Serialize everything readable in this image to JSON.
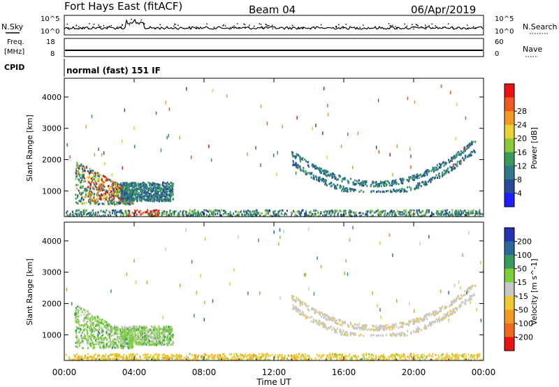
{
  "chart_data": {
    "type": "heatmap",
    "title": "Fort Hays East (fitACF)",
    "beam": "Beam 04",
    "date": "06/Apr/2019",
    "mode": "normal (fast) 151 IF",
    "xlabel": "Time UT",
    "x_ticks": [
      "00:00",
      "04:00",
      "08:00",
      "12:00",
      "16:00",
      "20:00",
      "00:00"
    ],
    "xlim_hours": [
      0,
      24
    ],
    "top_panels": {
      "nsky": {
        "left_label": "N.Sky",
        "right_label": "N.Search",
        "left_ticks": [
          "10^5",
          "10^0"
        ],
        "right_ticks": [
          "10^5",
          "10^0"
        ]
      },
      "freq": {
        "left_label_1": "Freq.",
        "left_label_2": "[MHz]",
        "right_label": "Nave",
        "left_ticks": [
          "18",
          "8"
        ],
        "right_ticks": [
          "60",
          "0"
        ]
      },
      "cpid_label": "CPID"
    },
    "panels": [
      {
        "name": "Power",
        "ylabel": "Slant Range [km]",
        "y_ticks": [
          "1000",
          "2000",
          "3000",
          "4000"
        ],
        "ylim_km": [
          180,
          4600
        ],
        "colorbar_label": "Power [dB]",
        "colorbar_ticks": [
          "4",
          "8",
          "12",
          "16",
          "20",
          "24",
          "28"
        ],
        "colorbar_colors": [
          "#1e1eff",
          "#2a4a9a",
          "#2f7a8a",
          "#3a9a5a",
          "#8ac83c",
          "#e8d234",
          "#f09a28",
          "#f05a1e",
          "#e81414"
        ]
      },
      {
        "name": "Velocity",
        "ylabel": "Slant Range [km]",
        "y_ticks": [
          "1000",
          "2000",
          "3000",
          "4000"
        ],
        "ylim_km": [
          180,
          4600
        ],
        "colorbar_label": "Velocity [m s^-1]",
        "colorbar_ticks": [
          "200",
          "100",
          "50",
          "15",
          "-15",
          "-50",
          "-100",
          "-200"
        ],
        "colorbar_colors": [
          "#2232b0",
          "#2a6a9a",
          "#3a9a5a",
          "#7ed03a",
          "#c8c8c8",
          "#f0c834",
          "#f09a28",
          "#f06a1e",
          "#e81414"
        ]
      }
    ],
    "scatter_regions": [
      {
        "t0": 0.6,
        "t1": 3.9,
        "r0": 600,
        "r1": 2000,
        "power": "mixed-high",
        "velocity": "green-gray"
      },
      {
        "t0": 3.2,
        "t1": 6.2,
        "r0": 700,
        "r1": 1300,
        "power": "low",
        "velocity": "green-gray"
      },
      {
        "t0": 0.0,
        "t1": 24.0,
        "r0": 200,
        "r1": 420,
        "power": "low-mid",
        "velocity": "yellow"
      },
      {
        "t0": 13.0,
        "t1": 23.5,
        "r0": 1000,
        "r1": 2600,
        "power": "low",
        "velocity": "gray",
        "shape": "arc"
      }
    ]
  }
}
